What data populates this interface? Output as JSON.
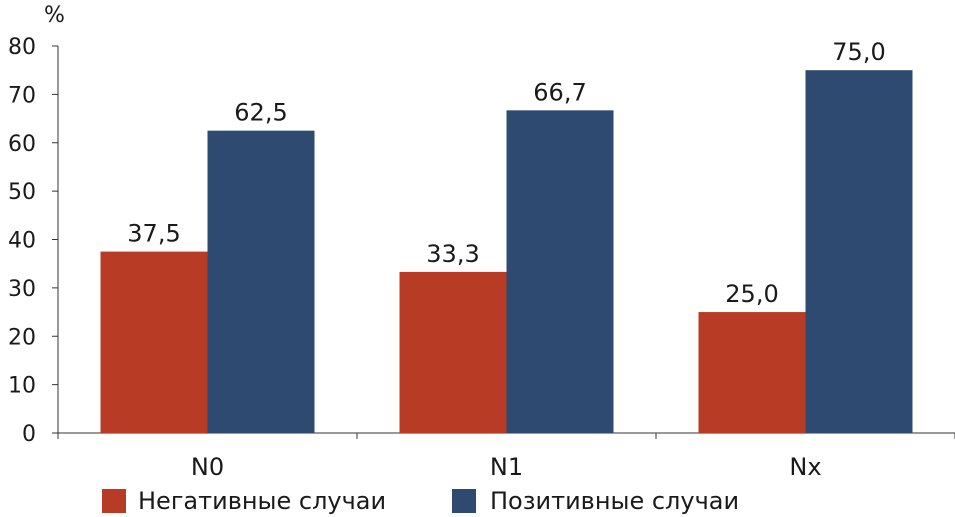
{
  "chart_data": {
    "type": "bar",
    "ylabel": "%",
    "ylim": [
      0,
      80
    ],
    "yticks": [
      0,
      10,
      20,
      30,
      40,
      50,
      60,
      70,
      80
    ],
    "categories": [
      "N0",
      "N1",
      "Nx"
    ],
    "series": [
      {
        "name": "Негативные случаи",
        "color": "#b83c25",
        "values": [
          37.5,
          33.3,
          25.0
        ],
        "labels": [
          "37,5",
          "33,3",
          "25,0"
        ]
      },
      {
        "name": "Позитивные случаи",
        "color": "#2e4a70",
        "values": [
          62.5,
          66.7,
          75.0
        ],
        "labels": [
          "62,5",
          "66,7",
          "75,0"
        ]
      }
    ],
    "grid": false,
    "legend": "bottom"
  }
}
